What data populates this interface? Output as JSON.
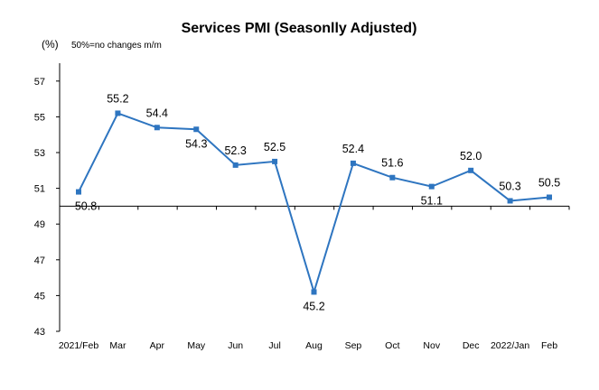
{
  "chart_data": {
    "type": "line",
    "title": "Services PMI (Seasonlly Adjusted)",
    "ylabel": "(%)",
    "note": "50%=no changes  m/m",
    "categories": [
      "2021/Feb",
      "Mar",
      "Apr",
      "May",
      "Jun",
      "Jul",
      "Aug",
      "Sep",
      "Oct",
      "Nov",
      "Dec",
      "2022/Jan",
      "Feb"
    ],
    "series": [
      {
        "values": [
          50.8,
          55.2,
          54.4,
          54.3,
          52.3,
          52.5,
          45.2,
          52.4,
          51.6,
          51.1,
          52.0,
          50.3,
          50.5
        ],
        "labels": [
          "50.8",
          "55.2",
          "54.4",
          "54.3",
          "52.3",
          "52.5",
          "45.2",
          "52.4",
          "51.6",
          "51.1",
          "52.0",
          "50.3",
          "50.5"
        ]
      }
    ],
    "yticks": [
      "57",
      "55",
      "53",
      "51",
      "49",
      "47",
      "45",
      "43"
    ],
    "ylim": [
      43,
      58
    ],
    "baseline": 50,
    "grid": false,
    "legend": "none",
    "line_color": "#2e75c0"
  }
}
